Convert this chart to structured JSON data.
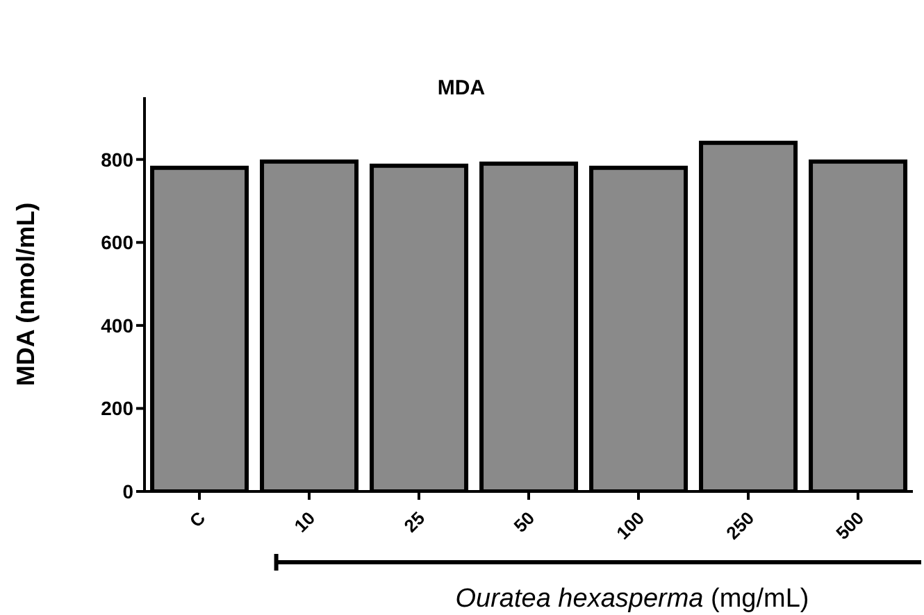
{
  "chart_data": {
    "type": "bar",
    "title": "MDA",
    "xlabel": "Ouratea hexasperma (mg/mL)",
    "ylabel": "MDA (nmol/mL)",
    "categories": [
      "C",
      "10",
      "25",
      "50",
      "100",
      "250",
      "500"
    ],
    "values": [
      780,
      795,
      785,
      790,
      780,
      840,
      795
    ],
    "color": "#8a8a8a",
    "ylim": [
      0,
      950
    ],
    "yticks": [
      0,
      200,
      400,
      600,
      800
    ]
  }
}
